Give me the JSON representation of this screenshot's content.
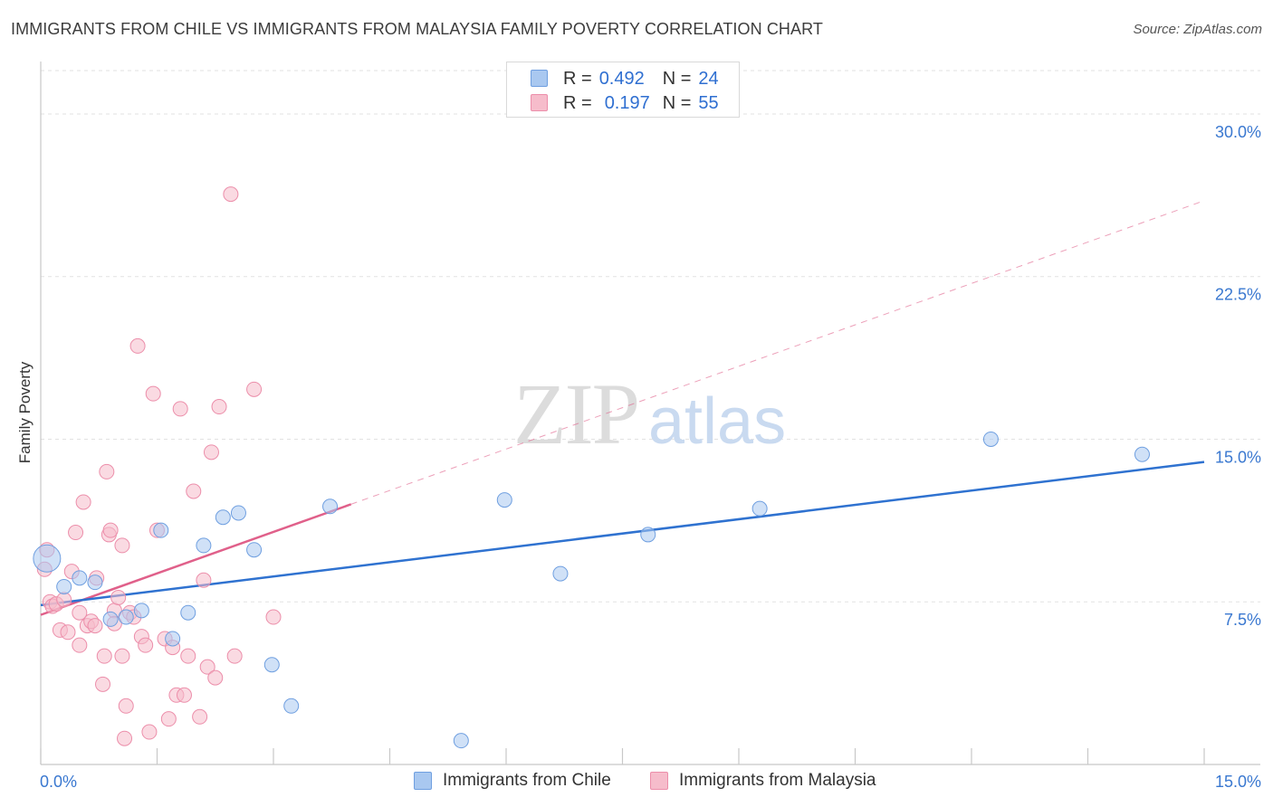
{
  "title": "IMMIGRANTS FROM CHILE VS IMMIGRANTS FROM MALAYSIA FAMILY POVERTY CORRELATION CHART",
  "source": "Source: ZipAtlas.com",
  "watermark": {
    "zip": "ZIP",
    "atlas": "atlas"
  },
  "stats": {
    "chile": {
      "r_label": "R =",
      "r_value": "0.492",
      "n_label": "N =",
      "n_value": "24"
    },
    "malaysia": {
      "r_label": "R =",
      "r_value": "0.197",
      "n_label": "N =",
      "n_value": "55"
    }
  },
  "legend": {
    "chile": "Immigrants from Chile",
    "malaysia": "Immigrants from Malaysia"
  },
  "colors": {
    "chile_fill": "#a9c8f0",
    "chile_stroke": "#6f9fe0",
    "chile_line": "#2f72d0",
    "malaysia_fill": "#f6bccb",
    "malaysia_stroke": "#ec8eaa",
    "malaysia_line": "#e0608a",
    "axis_text": "#3a78d0",
    "grid": "#e2e2e2"
  },
  "chart_data": {
    "type": "scatter",
    "title": "IMMIGRANTS FROM CHILE VS IMMIGRANTS FROM MALAYSIA FAMILY POVERTY CORRELATION CHART",
    "xlabel": "",
    "ylabel": "Family Poverty",
    "xlim": [
      0,
      15
    ],
    "ylim": [
      0,
      32
    ],
    "x_tick_labels": [
      "0.0%",
      "15.0%"
    ],
    "y_ticks": [
      7.5,
      15.0,
      22.5,
      30.0
    ],
    "y_tick_labels": [
      "7.5%",
      "15.0%",
      "22.5%",
      "30.0%"
    ],
    "series": [
      {
        "name": "Immigrants from Chile",
        "points": [
          {
            "x": 0.08,
            "y": 9.5,
            "big": true
          },
          {
            "x": 0.3,
            "y": 8.2
          },
          {
            "x": 0.5,
            "y": 8.6
          },
          {
            "x": 0.7,
            "y": 8.4
          },
          {
            "x": 0.9,
            "y": 6.7
          },
          {
            "x": 1.1,
            "y": 6.8
          },
          {
            "x": 1.3,
            "y": 7.1
          },
          {
            "x": 1.55,
            "y": 10.8
          },
          {
            "x": 1.7,
            "y": 5.8
          },
          {
            "x": 1.9,
            "y": 7.0
          },
          {
            "x": 2.1,
            "y": 10.1
          },
          {
            "x": 2.35,
            "y": 11.4
          },
          {
            "x": 2.55,
            "y": 11.6
          },
          {
            "x": 2.75,
            "y": 9.9
          },
          {
            "x": 2.98,
            "y": 4.6
          },
          {
            "x": 3.23,
            "y": 2.7
          },
          {
            "x": 3.73,
            "y": 11.9
          },
          {
            "x": 5.42,
            "y": 1.1
          },
          {
            "x": 5.98,
            "y": 12.2
          },
          {
            "x": 6.7,
            "y": 8.8
          },
          {
            "x": 7.83,
            "y": 10.6
          },
          {
            "x": 9.27,
            "y": 11.8
          },
          {
            "x": 12.25,
            "y": 15.0
          },
          {
            "x": 14.2,
            "y": 14.3
          }
        ],
        "trend": {
          "x": [
            0,
            15
          ],
          "y": [
            7.35,
            13.95
          ]
        }
      },
      {
        "name": "Immigrants from Malaysia",
        "points": [
          {
            "x": 0.05,
            "y": 9.0
          },
          {
            "x": 0.08,
            "y": 9.9
          },
          {
            "x": 0.12,
            "y": 7.5
          },
          {
            "x": 0.15,
            "y": 7.3
          },
          {
            "x": 0.2,
            "y": 7.4
          },
          {
            "x": 0.25,
            "y": 6.2
          },
          {
            "x": 0.3,
            "y": 7.6
          },
          {
            "x": 0.35,
            "y": 6.1
          },
          {
            "x": 0.4,
            "y": 8.9
          },
          {
            "x": 0.45,
            "y": 10.7
          },
          {
            "x": 0.5,
            "y": 7.0
          },
          {
            "x": 0.5,
            "y": 5.5
          },
          {
            "x": 0.55,
            "y": 12.1
          },
          {
            "x": 0.6,
            "y": 6.4
          },
          {
            "x": 0.65,
            "y": 6.6
          },
          {
            "x": 0.7,
            "y": 6.4
          },
          {
            "x": 0.72,
            "y": 8.6
          },
          {
            "x": 0.8,
            "y": 3.7
          },
          {
            "x": 0.82,
            "y": 5.0
          },
          {
            "x": 0.85,
            "y": 13.5
          },
          {
            "x": 0.88,
            "y": 10.6
          },
          {
            "x": 0.9,
            "y": 10.8
          },
          {
            "x": 0.95,
            "y": 7.1
          },
          {
            "x": 1.0,
            "y": 7.7
          },
          {
            "x": 1.05,
            "y": 10.1
          },
          {
            "x": 1.08,
            "y": 1.2
          },
          {
            "x": 1.1,
            "y": 2.7
          },
          {
            "x": 1.15,
            "y": 7.0
          },
          {
            "x": 1.2,
            "y": 6.8
          },
          {
            "x": 1.25,
            "y": 19.3
          },
          {
            "x": 1.3,
            "y": 5.9
          },
          {
            "x": 1.35,
            "y": 5.5
          },
          {
            "x": 1.4,
            "y": 1.5
          },
          {
            "x": 1.45,
            "y": 17.1
          },
          {
            "x": 1.5,
            "y": 10.8
          },
          {
            "x": 1.6,
            "y": 5.8
          },
          {
            "x": 1.65,
            "y": 2.1
          },
          {
            "x": 1.7,
            "y": 5.4
          },
          {
            "x": 1.75,
            "y": 3.2
          },
          {
            "x": 1.8,
            "y": 16.4
          },
          {
            "x": 1.85,
            "y": 3.2
          },
          {
            "x": 1.9,
            "y": 5.0
          },
          {
            "x": 1.97,
            "y": 12.6
          },
          {
            "x": 2.05,
            "y": 2.2
          },
          {
            "x": 2.1,
            "y": 8.5
          },
          {
            "x": 2.15,
            "y": 4.5
          },
          {
            "x": 2.2,
            "y": 14.4
          },
          {
            "x": 2.25,
            "y": 4.0
          },
          {
            "x": 2.3,
            "y": 16.5
          },
          {
            "x": 2.45,
            "y": 26.3
          },
          {
            "x": 2.5,
            "y": 5.0
          },
          {
            "x": 2.75,
            "y": 17.3
          },
          {
            "x": 3.0,
            "y": 6.8
          },
          {
            "x": 0.95,
            "y": 6.5
          },
          {
            "x": 1.05,
            "y": 5.0
          }
        ],
        "trend": {
          "x": [
            0,
            4.0
          ],
          "y": [
            6.9,
            12.0
          ]
        },
        "trend_extension": {
          "x": [
            4.0,
            15
          ],
          "y": [
            12.0,
            26.0
          ]
        }
      }
    ]
  }
}
